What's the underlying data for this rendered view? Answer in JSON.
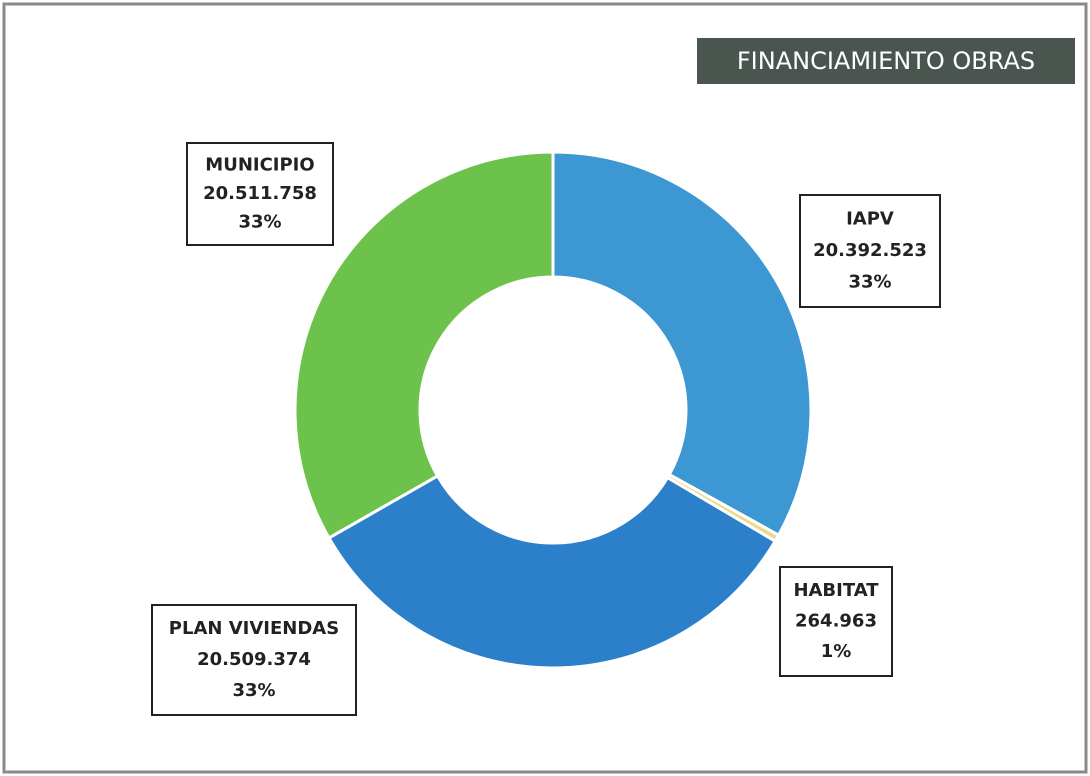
{
  "chart_data": {
    "type": "donut",
    "title": "FINANCIAMIENTO OBRAS",
    "categories": [
      "IAPV",
      "HABITAT",
      "PLAN VIVIENDAS",
      "MUNICIPIO"
    ],
    "values": [
      20392523,
      264963,
      20509374,
      20511758
    ],
    "value_labels": [
      "20.392.523",
      "264.963",
      "20.509.374",
      "20.511.758"
    ],
    "percent_labels": [
      "33%",
      "1%",
      "33%",
      "33%"
    ],
    "colors": [
      "#3d97d3",
      "#e9dc8c",
      "#2b80c9",
      "#6cc24a"
    ]
  }
}
